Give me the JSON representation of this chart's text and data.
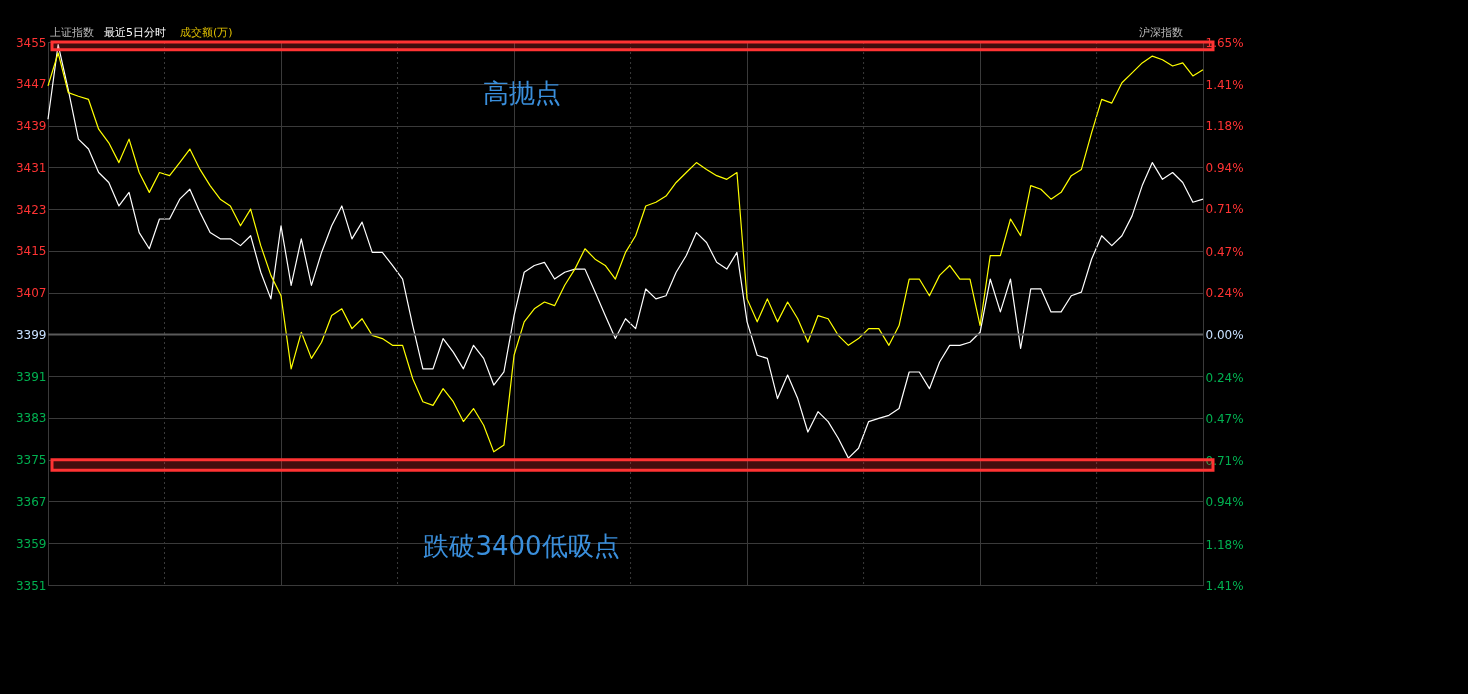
{
  "chart_data": {
    "type": "line",
    "title": "上证指数",
    "subtitle": "最近5日分时",
    "categories": [
      null,
      null,
      null,
      null,
      null,
      null,
      null,
      null,
      null,
      null,
      null,
      null,
      null,
      null,
      null,
      null,
      null,
      null,
      null,
      null,
      null,
      null,
      null,
      null,
      null,
      null,
      null,
      null,
      null,
      null,
      null,
      null,
      null,
      null,
      null,
      null,
      null,
      null,
      null,
      null,
      null,
      null,
      null,
      null,
      null,
      null,
      null,
      null,
      null,
      null,
      null,
      null,
      null,
      null,
      null,
      null,
      null,
      null,
      null,
      null,
      null,
      null,
      null,
      null,
      null,
      null,
      null,
      null,
      null,
      null,
      null,
      null,
      null,
      null,
      null,
      null,
      null,
      null,
      null,
      null,
      null,
      null,
      null,
      null,
      null,
      null,
      null,
      null,
      null,
      null,
      null,
      null,
      null,
      null,
      null,
      null,
      null,
      null,
      null,
      null,
      null,
      null,
      null,
      null,
      null,
      null,
      null,
      null,
      null,
      null,
      null,
      null,
      null,
      null,
      null
    ],
    "series": [
      {
        "color": "#ffffff",
        "values": [
          3440.2,
          3454.5,
          3445.9,
          3436.4,
          3434.5,
          3430,
          3428.1,
          3423.6,
          3426.2,
          3418.5,
          3415.4,
          3421.1,
          3421.1,
          3424.9,
          3426.8,
          3422.4,
          3418.5,
          3417.3,
          3417.3,
          3416,
          3417.9,
          3410.9,
          3405.8,
          3419.8,
          3408.4,
          3417.3,
          3408.4,
          3414.7,
          3419.8,
          3423.6,
          3417.3,
          3420.5,
          3414.7,
          3414.7,
          3412.2,
          3409.6,
          3400.7,
          3392.4,
          3392.4,
          3398.2,
          3395.6,
          3392.4,
          3396.9,
          3394.4,
          3389.3,
          3391.8,
          3402.6,
          3410.9,
          3412.2,
          3412.8,
          3409.6,
          3410.9,
          3411.5,
          3411.5,
          3407.1,
          3402.6,
          3398.2,
          3402,
          3400.1,
          3407.7,
          3405.8,
          3406.4,
          3410.9,
          3414.1,
          3418.5,
          3416.6,
          3412.8,
          3411.5,
          3414.7,
          3401.4,
          3395,
          3394.4,
          3386.7,
          3391.2,
          3386.7,
          3380.3,
          3384.2,
          3382.3,
          3379.1,
          3375.3,
          3377.2,
          3382.3,
          3382.9,
          3383.5,
          3384.8,
          3391.8,
          3391.8,
          3388.6,
          3393.7,
          3396.9,
          3396.9,
          3397.5,
          3399.4,
          3409.6,
          3403.3,
          3409.6,
          3396.3,
          3407.7,
          3407.7,
          3403.3,
          3403.3,
          3406.4,
          3407.1,
          3413.4,
          3417.9,
          3416,
          3417.9,
          3421.7,
          3427.5,
          3431.9,
          3428.7,
          3430,
          3428.1,
          3424.3,
          3424.9
        ]
      },
      {
        "color": "#ffff00",
        "values": [
          3446.6,
          3452.9,
          3445.3,
          3444.6,
          3444,
          3438.3,
          3435.7,
          3431.9,
          3436.4,
          3430,
          3426.2,
          3430,
          3429.4,
          3431.9,
          3434.5,
          3430.6,
          3427.5,
          3424.9,
          3423.6,
          3419.8,
          3423,
          3416,
          3410.3,
          3406.4,
          3392.4,
          3399.4,
          3394.4,
          3397.5,
          3402.6,
          3403.9,
          3400.1,
          3402,
          3398.8,
          3398.2,
          3396.9,
          3396.9,
          3390.5,
          3386.1,
          3385.4,
          3388.6,
          3386.1,
          3382.3,
          3384.8,
          3381.6,
          3376.5,
          3377.8,
          3395,
          3401.4,
          3403.9,
          3405.2,
          3404.5,
          3408.4,
          3411.5,
          3415.4,
          3413.4,
          3412.2,
          3409.6,
          3414.7,
          3417.9,
          3423.6,
          3424.3,
          3425.5,
          3428.1,
          3430,
          3431.9,
          3430.6,
          3429.4,
          3428.7,
          3430,
          3405.8,
          3401.4,
          3405.8,
          3401.4,
          3405.2,
          3402,
          3397.5,
          3402.6,
          3402,
          3398.8,
          3396.9,
          3398.2,
          3400.1,
          3400.1,
          3396.9,
          3400.7,
          3409.6,
          3409.6,
          3406.4,
          3410.3,
          3412.2,
          3409.6,
          3409.6,
          3400.7,
          3414.1,
          3414.1,
          3421.1,
          3417.9,
          3427.5,
          3426.8,
          3424.9,
          3426.2,
          3429.4,
          3430.6,
          3437.6,
          3444,
          3443.3,
          3447.2,
          3449.1,
          3451,
          3452.3,
          3451.6,
          3450.4,
          3451,
          3448.5,
          3449.7
        ]
      }
    ],
    "ylim": [
      3351,
      3455
    ],
    "yticks": [
      3351,
      3359,
      3367,
      3375,
      3383,
      3391,
      3399,
      3407,
      3415,
      3423,
      3431,
      3439,
      3447,
      3455
    ],
    "y2lim": [
      -1.41,
      1.65
    ],
    "y2ticks": [
      {
        "value": -1.41,
        "label": "1.41%"
      },
      {
        "value": -1.18,
        "label": "1.18%"
      },
      {
        "value": -0.94,
        "label": "0.94%"
      },
      {
        "value": -0.71,
        "label": "0.71%"
      },
      {
        "value": -0.47,
        "label": "0.47%"
      },
      {
        "value": -0.24,
        "label": "0.24%"
      },
      {
        "value": 0,
        "label": "0.00%"
      },
      {
        "value": 0.24,
        "label": "0.24%"
      },
      {
        "value": 0.47,
        "label": "0.47%"
      },
      {
        "value": 0.71,
        "label": "0.71%"
      },
      {
        "value": 0.94,
        "label": "0.94%"
      },
      {
        "value": 1.18,
        "label": "1.18%"
      },
      {
        "value": 1.41,
        "label": "1.41%"
      },
      {
        "value": 1.65,
        "label": "1.65%"
      }
    ],
    "ref_lines": [
      {
        "axis": "y",
        "value": 3399,
        "color": "#5a5a5a"
      }
    ],
    "bands": [
      {
        "axis": "y",
        "from": 3453.5,
        "to": 3455,
        "color": "#ff3333"
      },
      {
        "axis": "y",
        "from": 3373,
        "to": 3375,
        "color": "#ff3333"
      }
    ],
    "annotations": [
      "高抛点",
      "跌破3400低吸点",
      "成交额(万)",
      "沪深指数"
    ],
    "grid": true,
    "legend": false,
    "line_style": "solid",
    "marker": "none"
  }
}
